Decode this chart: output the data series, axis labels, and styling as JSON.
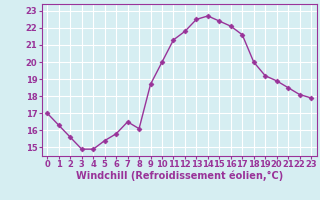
{
  "x": [
    0,
    1,
    2,
    3,
    4,
    5,
    6,
    7,
    8,
    9,
    10,
    11,
    12,
    13,
    14,
    15,
    16,
    17,
    18,
    19,
    20,
    21,
    22,
    23
  ],
  "y": [
    17.0,
    16.3,
    15.6,
    14.9,
    14.9,
    15.4,
    15.8,
    16.5,
    16.1,
    18.7,
    20.0,
    21.3,
    21.8,
    22.5,
    22.7,
    22.4,
    22.1,
    21.6,
    20.0,
    19.2,
    18.9,
    18.5,
    18.1,
    17.9
  ],
  "color": "#993399",
  "bg_color": "#d6eef2",
  "grid_color": "#ffffff",
  "xlabel": "Windchill (Refroidissement éolien,°C)",
  "ylabel_ticks": [
    15,
    16,
    17,
    18,
    19,
    20,
    21,
    22,
    23
  ],
  "ylim": [
    14.5,
    23.4
  ],
  "xlim": [
    -0.5,
    23.5
  ],
  "marker": "D",
  "marker_size": 2.5,
  "line_width": 1.0,
  "xlabel_fontsize": 7,
  "tick_fontsize": 6.0,
  "xtick_labels": [
    "0",
    "1",
    "2",
    "3",
    "4",
    "5",
    "6",
    "7",
    "8",
    "9",
    "10",
    "11",
    "12",
    "13",
    "14",
    "15",
    "16",
    "17",
    "18",
    "19",
    "20",
    "21",
    "22",
    "23"
  ]
}
